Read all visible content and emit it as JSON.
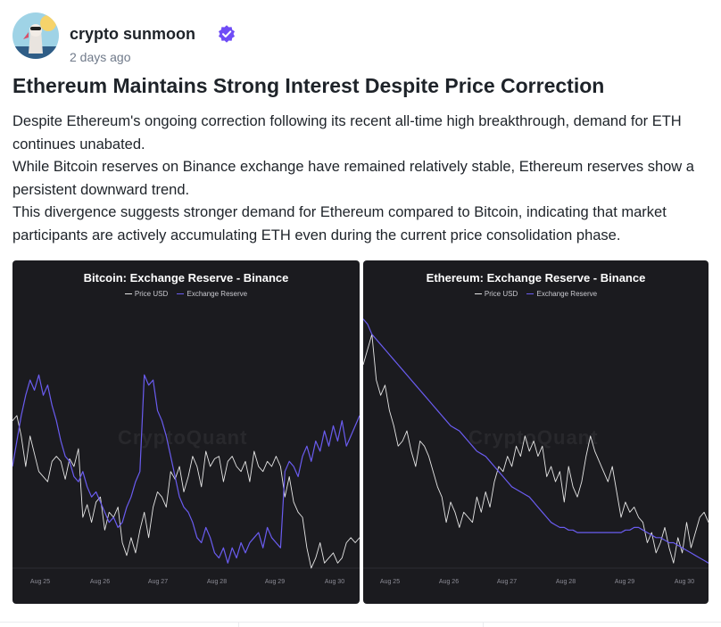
{
  "post": {
    "author": "crypto sunmoon",
    "time": "2 days ago",
    "title": "Ethereum Maintains Strong Interest Despite Price Correction",
    "paragraphs": [
      "Despite Ethereum's ongoing correction following its recent all-time high breakthrough, demand for ETH continues unabated.",
      "While Bitcoin reserves on Binance exchange have remained relatively stable, Ethereum reserves show a persistent downward trend.",
      "This divergence suggests stronger demand for Ethereum compared to Bitcoin, indicating that market participants are actively accumulating ETH even during the current price consolidation phase."
    ]
  },
  "colors": {
    "price_line": "#e6e6e6",
    "reserve_line": "#6a5cf0",
    "chart_bg": "#1b1b1f",
    "verified": "#6f4cf6"
  },
  "chart_data": [
    {
      "type": "line",
      "title": "Bitcoin: Exchange Reserve - Binance",
      "watermark": "CryptoQuant",
      "x_ticks": [
        "Aug 25",
        "Aug 26",
        "Aug 27",
        "Aug 28",
        "Aug 29",
        "Aug 30"
      ],
      "series": [
        {
          "name": "Price USD",
          "values": [
            58,
            60,
            52,
            40,
            52,
            45,
            38,
            36,
            34,
            42,
            44,
            42,
            35,
            43,
            40,
            47,
            20,
            25,
            18,
            26,
            28,
            15,
            22,
            20,
            24,
            10,
            5,
            12,
            6,
            15,
            22,
            12,
            24,
            30,
            28,
            24,
            38,
            35,
            40,
            30,
            36,
            44,
            40,
            32,
            46,
            40,
            43,
            44,
            34,
            42,
            44,
            40,
            38,
            42,
            34,
            46,
            40,
            38,
            42,
            40,
            44,
            40,
            28,
            36,
            26,
            22,
            20,
            8,
            0,
            4,
            10,
            2,
            4,
            6,
            2,
            4,
            10,
            12,
            10,
            12
          ]
        },
        {
          "name": "Exchange Reserve",
          "values": [
            40,
            50,
            60,
            68,
            74,
            70,
            76,
            68,
            72,
            64,
            58,
            50,
            44,
            42,
            36,
            34,
            38,
            32,
            28,
            30,
            26,
            22,
            18,
            20,
            16,
            18,
            24,
            28,
            34,
            38,
            76,
            72,
            74,
            62,
            58,
            52,
            44,
            36,
            28,
            24,
            22,
            18,
            12,
            10,
            16,
            12,
            6,
            4,
            8,
            2,
            8,
            4,
            10,
            6,
            10,
            12,
            14,
            8,
            16,
            12,
            10,
            8,
            38,
            42,
            40,
            36,
            44,
            48,
            42,
            50,
            46,
            54,
            48,
            56,
            50,
            58,
            48,
            52,
            56,
            60
          ]
        }
      ]
    },
    {
      "type": "line",
      "title": "Ethereum: Exchange Reserve - Binance",
      "watermark": "CryptoQuant",
      "x_ticks": [
        "Aug 25",
        "Aug 26",
        "Aug 27",
        "Aug 28",
        "Aug 29",
        "Aug 30"
      ],
      "series": [
        {
          "name": "Price USD",
          "values": [
            80,
            86,
            92,
            74,
            68,
            72,
            62,
            56,
            48,
            50,
            54,
            46,
            40,
            50,
            48,
            44,
            38,
            32,
            28,
            18,
            26,
            22,
            16,
            22,
            20,
            18,
            28,
            22,
            30,
            24,
            34,
            40,
            38,
            44,
            40,
            48,
            44,
            52,
            46,
            50,
            44,
            48,
            36,
            40,
            34,
            38,
            26,
            40,
            32,
            28,
            34,
            44,
            52,
            46,
            42,
            38,
            34,
            40,
            30,
            20,
            26,
            22,
            24,
            20,
            18,
            10,
            14,
            6,
            10,
            16,
            8,
            2,
            12,
            6,
            18,
            8,
            14,
            20,
            22,
            18
          ]
        },
        {
          "name": "Exchange Reserve",
          "values": [
            98,
            96,
            92,
            90,
            88,
            86,
            84,
            82,
            80,
            78,
            76,
            74,
            72,
            70,
            68,
            66,
            64,
            62,
            60,
            58,
            56,
            55,
            54,
            52,
            50,
            48,
            46,
            45,
            44,
            42,
            40,
            38,
            36,
            34,
            32,
            31,
            30,
            29,
            28,
            26,
            24,
            22,
            20,
            18,
            17,
            16,
            16,
            15,
            15,
            14,
            14,
            14,
            14,
            14,
            14,
            14,
            14,
            14,
            14,
            14,
            15,
            15,
            16,
            16,
            15,
            14,
            13,
            12,
            12,
            11,
            10,
            10,
            9,
            8,
            7,
            6,
            5,
            4,
            3,
            2
          ]
        }
      ]
    }
  ]
}
